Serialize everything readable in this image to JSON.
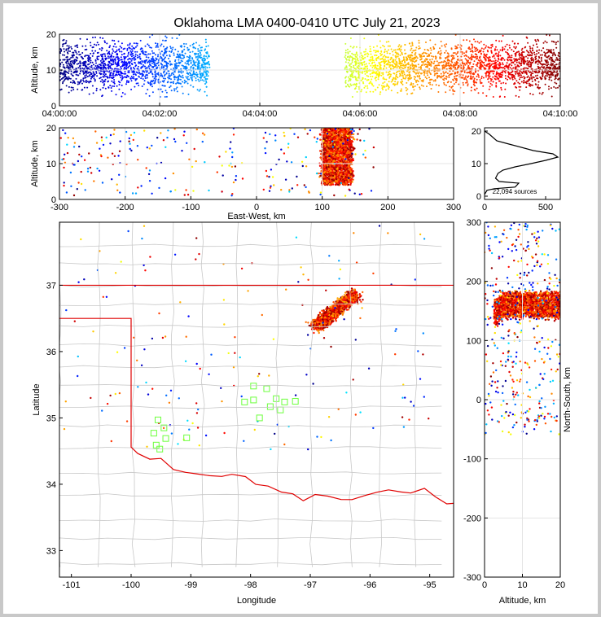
{
  "title": "Oklahoma LMA 0400-0410 UTC July 21, 2023",
  "source_count_label": "22,094 sources",
  "chart_data": [
    {
      "type": "scatter",
      "name": "time-height",
      "xlabel": "",
      "ylabel": "Altitude, km",
      "xticks": [
        "04:00:00",
        "04:02:00",
        "04:04:00",
        "04:06:00",
        "04:08:00",
        "04:10:00"
      ],
      "xlim_minutes": [
        0,
        10
      ],
      "ylim": [
        0,
        20
      ],
      "yticks": [
        0,
        10,
        20
      ],
      "active_intervals_minutes": [
        [
          0,
          3.0
        ],
        [
          5.7,
          10
        ]
      ],
      "color_by": "time",
      "colormap": "jet"
    },
    {
      "type": "scatter",
      "name": "east-west-vs-altitude",
      "xlabel": "East-West, km",
      "ylabel": "Altitude, km",
      "xlim": [
        -300,
        300
      ],
      "xticks": [
        -300,
        -200,
        -100,
        0,
        100,
        200,
        300
      ],
      "ylim": [
        0,
        20
      ],
      "yticks": [
        0,
        10,
        20
      ],
      "dense_core_x_range": [
        100,
        145
      ]
    },
    {
      "type": "line",
      "name": "altitude-histogram",
      "xlim": [
        0,
        620
      ],
      "xticks": [
        0,
        500
      ],
      "ylim": [
        -1,
        21
      ],
      "yticks": [
        0,
        10,
        20
      ],
      "profile": [
        [
          0,
          0.5
        ],
        [
          20,
          1.8
        ],
        [
          80,
          2.3
        ],
        [
          250,
          2.8
        ],
        [
          280,
          4
        ],
        [
          120,
          4.5
        ],
        [
          90,
          5.5
        ],
        [
          110,
          7
        ],
        [
          150,
          8
        ],
        [
          250,
          9
        ],
        [
          380,
          10
        ],
        [
          500,
          11
        ],
        [
          600,
          12
        ],
        [
          560,
          13
        ],
        [
          400,
          14
        ],
        [
          200,
          16
        ],
        [
          100,
          17
        ],
        [
          40,
          19
        ],
        [
          0,
          20
        ]
      ]
    },
    {
      "type": "scatter",
      "name": "plan-view",
      "xlabel": "Longitude",
      "ylabel": "Latitude",
      "xlim": [
        -101.2,
        -94.6
      ],
      "ylim": [
        32.6,
        37.95
      ],
      "xticks": [
        -101,
        -100,
        -99,
        -98,
        -97,
        -96,
        -95
      ],
      "yticks": [
        33,
        34,
        35,
        36,
        37
      ],
      "stations": [
        [
          -99.55,
          34.97
        ],
        [
          -99.45,
          34.85
        ],
        [
          -99.62,
          34.77
        ],
        [
          -99.42,
          34.69
        ],
        [
          -99.58,
          34.59
        ],
        [
          -99.52,
          34.53
        ],
        [
          -99.07,
          34.7
        ],
        [
          -97.95,
          35.48
        ],
        [
          -98.1,
          35.24
        ],
        [
          -97.95,
          35.27
        ],
        [
          -97.73,
          35.44
        ],
        [
          -97.57,
          35.29
        ],
        [
          -97.43,
          35.24
        ],
        [
          -97.25,
          35.25
        ],
        [
          -97.67,
          35.17
        ],
        [
          -97.5,
          35.12
        ],
        [
          -97.85,
          35.0
        ]
      ]
    },
    {
      "type": "scatter",
      "name": "altitude-vs-north-south",
      "xlabel": "Altitude, km",
      "ylabel": "North-South, km",
      "xlim": [
        0,
        20
      ],
      "xticks": [
        0,
        10,
        20
      ],
      "ylim": [
        -300,
        300
      ],
      "yticks": [
        -300,
        -200,
        -100,
        0,
        100,
        200,
        300
      ],
      "dense_core_y_range": [
        140,
        180
      ]
    }
  ]
}
